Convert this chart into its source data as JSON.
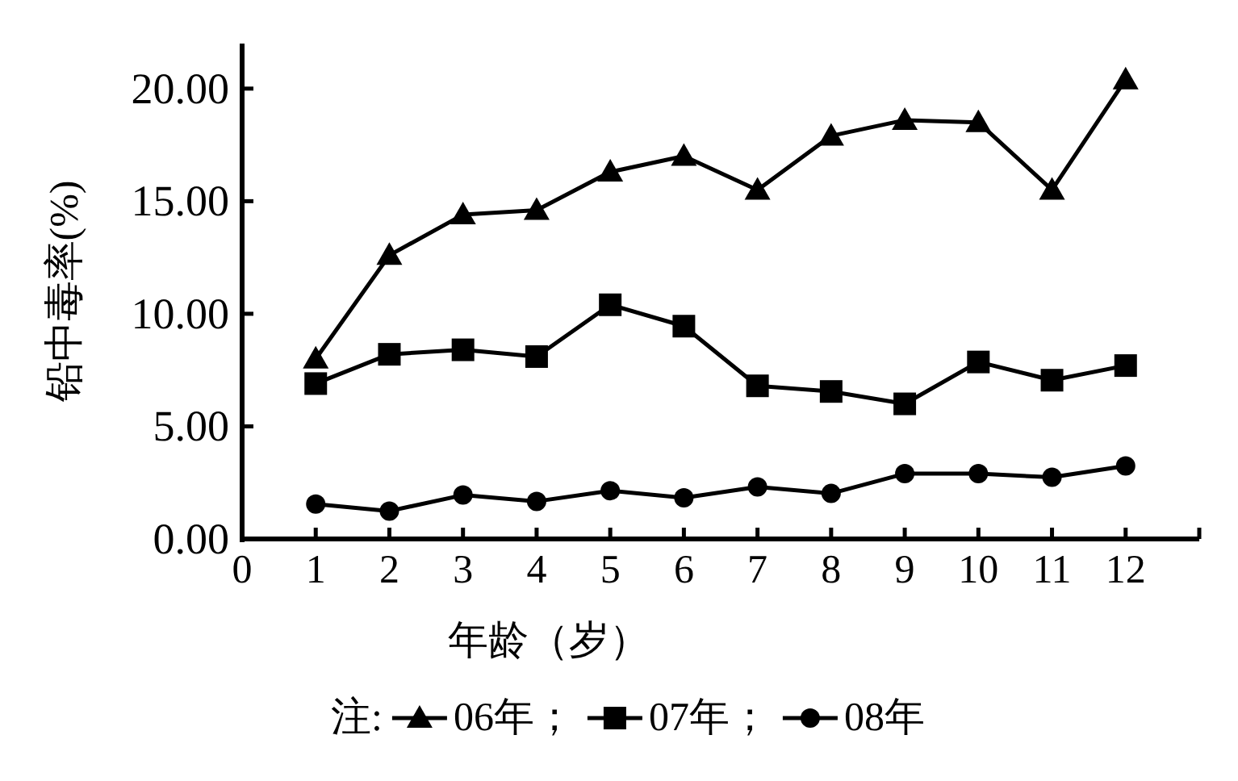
{
  "chart_data": {
    "type": "line",
    "xlabel": "年龄（岁）",
    "ylabel": "铅中毒率(%)",
    "legend_title": "注:",
    "legend": "bottom",
    "x": [
      1,
      2,
      3,
      4,
      5,
      6,
      7,
      8,
      9,
      10,
      11,
      12
    ],
    "xlim": [
      0,
      13
    ],
    "xticks": [
      0,
      1,
      2,
      3,
      4,
      5,
      6,
      7,
      8,
      9,
      10,
      11,
      12,
      {
        "value": 13,
        "label": null
      }
    ],
    "ylim": [
      0,
      22
    ],
    "yticks": [
      {
        "value": 0,
        "label": "0.00"
      },
      {
        "value": 5,
        "label": "5.00"
      },
      {
        "value": 10,
        "label": "10.00"
      },
      {
        "value": 15,
        "label": "15.00"
      },
      {
        "value": 20,
        "label": "20.00"
      }
    ],
    "grid": false,
    "line_style": "solid",
    "series": [
      {
        "name": "06年；",
        "color": "#000000",
        "marker": "triangle",
        "values": [
          8.0,
          12.6,
          14.4,
          14.6,
          16.3,
          17.0,
          15.5,
          17.9,
          18.6,
          18.5,
          15.5,
          20.4
        ]
      },
      {
        "name": "07年；",
        "color": "#000000",
        "marker": "square",
        "values": [
          6.9,
          8.2,
          8.4,
          8.1,
          10.4,
          9.45,
          6.8,
          6.55,
          6.0,
          7.86,
          7.05,
          7.7
        ]
      },
      {
        "name": "08年",
        "color": "#000000",
        "marker": "circle",
        "values": [
          1.55,
          1.24,
          1.95,
          1.67,
          2.14,
          1.83,
          2.31,
          2.02,
          2.9,
          2.9,
          2.74,
          3.24
        ]
      }
    ]
  }
}
